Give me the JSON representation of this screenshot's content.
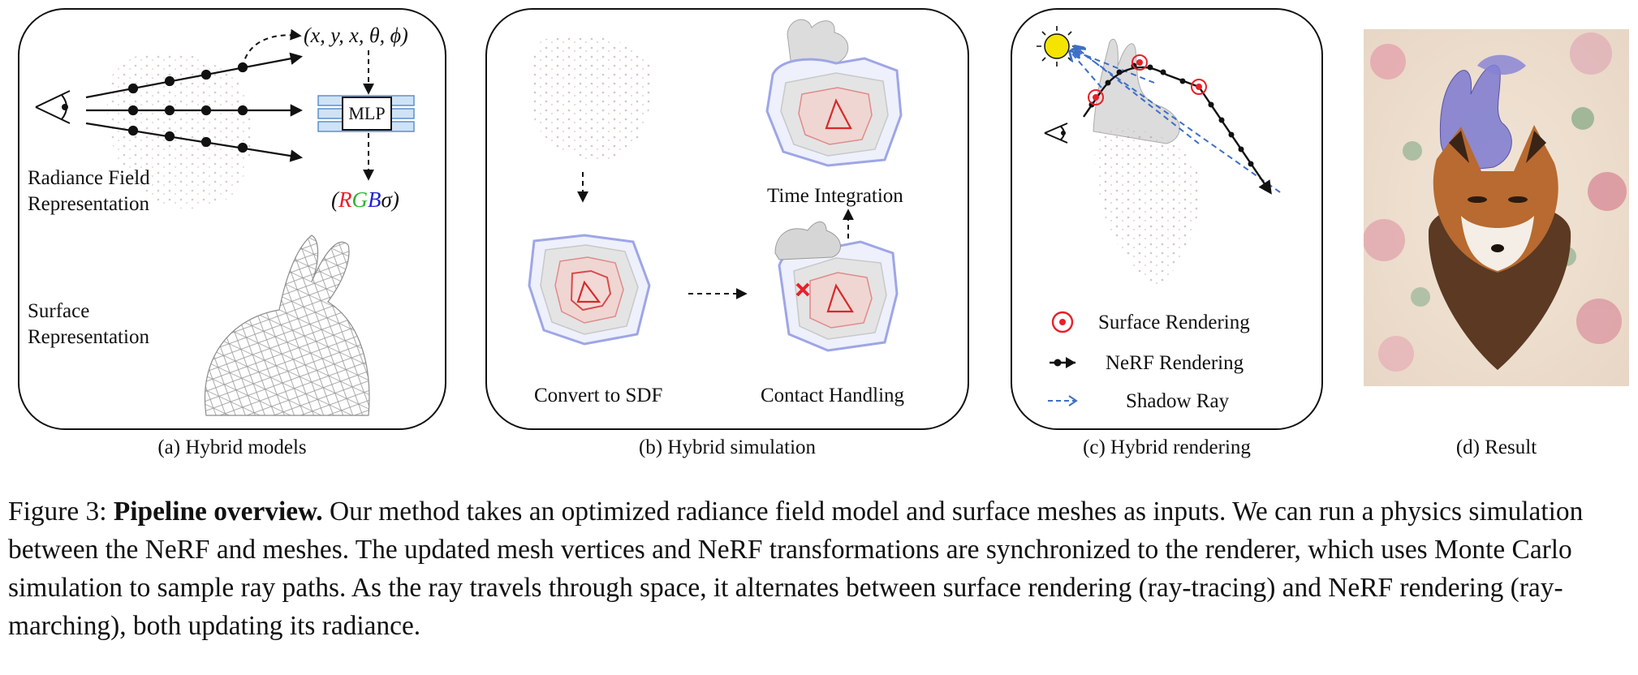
{
  "panels": {
    "a": {
      "tuple": "(x, y, x, θ, ϕ)",
      "mlp": "MLP",
      "rgb": {
        "open": "(",
        "r": "R",
        "g": "G",
        "b": "B",
        "sigma": "σ",
        "close": ")"
      },
      "radiance_line1": "Radiance Field",
      "radiance_line2": "Representation",
      "surface_line1": "Surface",
      "surface_line2": "Representation",
      "subcaption": "(a) Hybrid models"
    },
    "b": {
      "convert": "Convert to SDF",
      "contact": "Contact Handling",
      "time": "Time Integration",
      "subcaption": "(b) Hybrid simulation"
    },
    "c": {
      "legend": [
        {
          "label": "Surface Rendering",
          "icon": "target-circle-icon"
        },
        {
          "label": "NeRF Rendering",
          "icon": "dot-arrow-icon"
        },
        {
          "label": "Shadow Ray",
          "icon": "dashed-arrow-icon"
        }
      ],
      "subcaption": "(c) Hybrid rendering"
    },
    "d": {
      "subcaption": "(d) Result"
    }
  },
  "caption": {
    "prefix": "Figure 3: ",
    "bold": "Pipeline overview.",
    "text": " Our method takes an optimized radiance field model and surface meshes as inputs. We can run a physics simulation between the NeRF and meshes. The updated mesh vertices and NeRF transformations are synchronized to the renderer, which uses Monte Carlo simulation to sample ray paths. As the ray travels through space, it alternates between surface rendering (ray-tracing) and NeRF rendering (ray-marching), both updating its radiance."
  },
  "colors": {
    "red": "#e8202a",
    "green": "#2fb12f",
    "blue": "#2323d0",
    "mlp_blue": "#9ec3ea",
    "shadow_ray": "#3e6fc6",
    "sun": "#f5e400"
  }
}
